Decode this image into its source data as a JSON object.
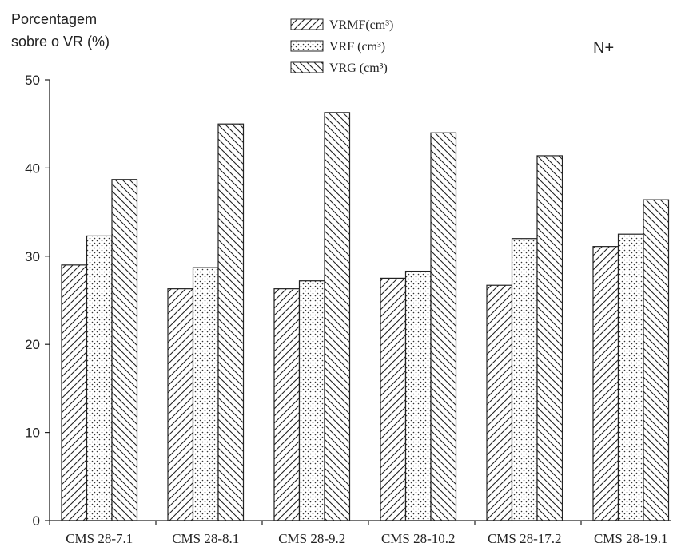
{
  "chart_data": {
    "type": "bar",
    "ylabel": [
      "Porcentagem",
      "sobre o VR  (%)"
    ],
    "annotation": "N+",
    "categories": [
      "CMS 28-7.1",
      "CMS 28-8.1",
      "CMS 28-9.2",
      "CMS 28-10.2",
      "CMS 28-17.2",
      "CMS 28-19.1"
    ],
    "series": [
      {
        "name": "VRMF(cm³)",
        "pattern": "forward-hatch",
        "values": [
          29.0,
          26.3,
          26.3,
          27.5,
          26.7,
          31.1
        ]
      },
      {
        "name": "VRF (cm³)",
        "pattern": "dots",
        "values": [
          32.3,
          28.7,
          27.2,
          28.3,
          32.0,
          32.5
        ]
      },
      {
        "name": "VRG (cm³)",
        "pattern": "back-hatch",
        "values": [
          38.7,
          45.0,
          46.3,
          44.0,
          41.4,
          36.4
        ]
      }
    ],
    "ylim": [
      0,
      50
    ],
    "yticks": [
      0,
      10,
      20,
      30,
      40,
      50
    ],
    "legend": "top-center",
    "grid": false
  }
}
